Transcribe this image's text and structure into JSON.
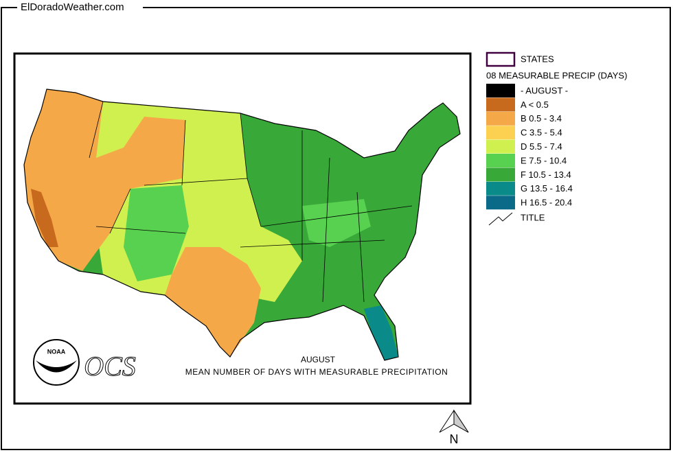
{
  "header": {
    "site": "ElDoradoWeather.com"
  },
  "map": {
    "month": "AUGUST",
    "caption": "MEAN NUMBER OF DAYS WITH MEASURABLE PRECIPITATION",
    "logo_noaa": "NOAA",
    "logo_ocs": "OCS"
  },
  "legend": {
    "states": "STATES",
    "title": "08 MEASURABLE PRECIP (DAYS)",
    "items": [
      {
        "label": "- AUGUST -",
        "color": "#000000"
      },
      {
        "label": "A < 0.5",
        "color": "#c86a1e"
      },
      {
        "label": "B 0.5 - 3.4",
        "color": "#f5a848"
      },
      {
        "label": "C 3.5 - 5.4",
        "color": "#fcd050"
      },
      {
        "label": "D 5.5 - 7.4",
        "color": "#d0f050"
      },
      {
        "label": "E 7.5 - 10.4",
        "color": "#58d050"
      },
      {
        "label": "F 10.5 - 13.4",
        "color": "#38a838"
      },
      {
        "label": "G 13.5 - 16.4",
        "color": "#0a8a88"
      },
      {
        "label": "H 16.5 - 20.4",
        "color": "#0a6a88"
      }
    ],
    "title_line": "TITLE"
  },
  "north": "N"
}
